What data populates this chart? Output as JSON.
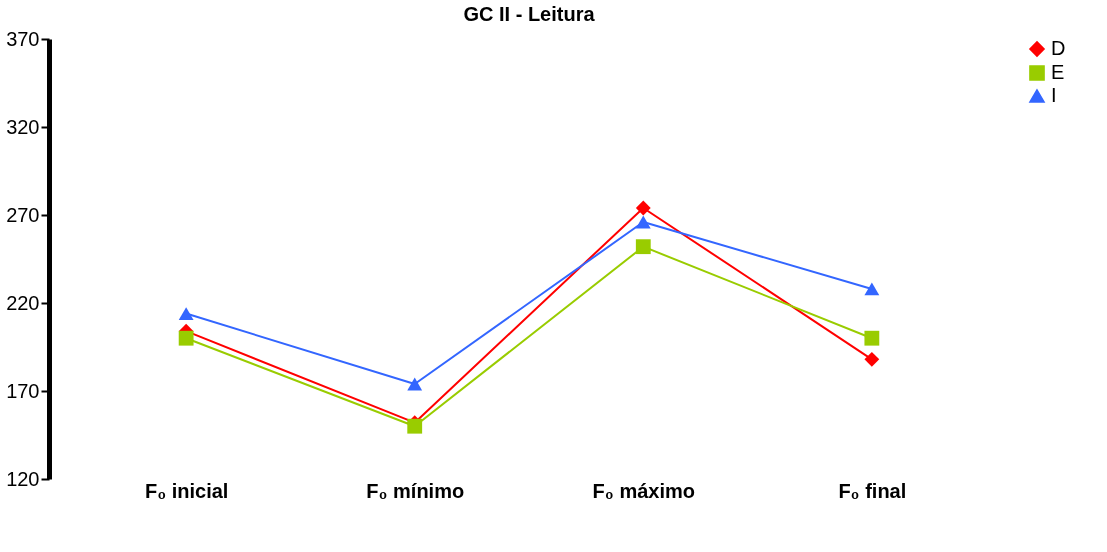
{
  "chart_data": {
    "type": "line",
    "title": "GC II - Leitura",
    "categories": [
      "F₀ inicial",
      "F₀ mínimo",
      "F₀ máximo",
      "F₀ final"
    ],
    "series": [
      {
        "name": "D",
        "color": "#ff0000",
        "marker": "diamond",
        "values": [
          204,
          152,
          274,
          188
        ]
      },
      {
        "name": "E",
        "color": "#99cc00",
        "marker": "square",
        "values": [
          200,
          150,
          252,
          200
        ]
      },
      {
        "name": "I",
        "color": "#3366ff",
        "marker": "triangle",
        "values": [
          214,
          174,
          266,
          228
        ]
      }
    ],
    "ylim": [
      120,
      370
    ],
    "yticks": [
      120,
      170,
      220,
      270,
      320,
      370
    ],
    "grid": false,
    "legend": "right",
    "line_style": "solid"
  }
}
